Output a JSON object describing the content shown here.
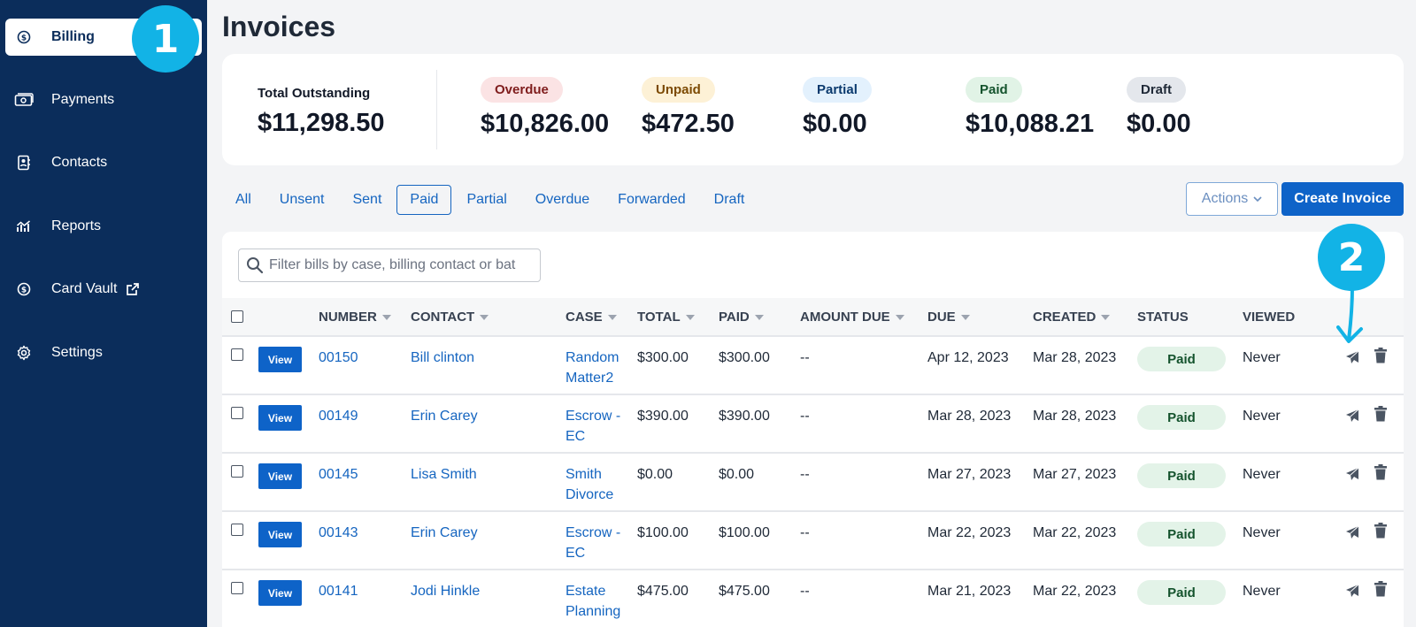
{
  "sidebar": {
    "items": [
      {
        "label": "Billing",
        "icon": "dollar-circle-icon",
        "active": true
      },
      {
        "label": "Payments",
        "icon": "banknote-icon"
      },
      {
        "label": "Contacts",
        "icon": "contact-book-icon"
      },
      {
        "label": "Reports",
        "icon": "chart-icon"
      },
      {
        "label": "Card Vault",
        "icon": "dollar-circle-icon",
        "extra_icon": "external-link-icon"
      },
      {
        "label": "Settings",
        "icon": "gear-icon"
      }
    ]
  },
  "callouts": [
    "1",
    "2"
  ],
  "page_title": "Invoices",
  "summary": {
    "total_label": "Total Outstanding",
    "total_value": "$11,298.50",
    "stats": [
      {
        "label": "Overdue",
        "value": "$10,826.00",
        "bg": "#fbe3e4",
        "fg": "#7f1d1d"
      },
      {
        "label": "Unpaid",
        "value": "$472.50",
        "bg": "#fdf1d6",
        "fg": "#7c4a03"
      },
      {
        "label": "Partial",
        "value": "$0.00",
        "bg": "#e3f1fd",
        "fg": "#0b3a6e"
      },
      {
        "label": "Paid",
        "value": "$10,088.21",
        "bg": "#e1f3e6",
        "fg": "#14532d"
      },
      {
        "label": "Draft",
        "value": "$0.00",
        "bg": "#e4e7ec",
        "fg": "#1f2937"
      }
    ]
  },
  "tabs": [
    "All",
    "Unsent",
    "Sent",
    "Paid",
    "Partial",
    "Overdue",
    "Forwarded",
    "Draft"
  ],
  "active_tab": "Paid",
  "toolbar": {
    "actions_label": "Actions",
    "create_label": "Create Invoice"
  },
  "search": {
    "placeholder": "Filter bills by case, billing contact or bat"
  },
  "table": {
    "columns": [
      "NUMBER",
      "CONTACT",
      "CASE",
      "TOTAL",
      "PAID",
      "AMOUNT DUE",
      "DUE",
      "CREATED",
      "STATUS",
      "VIEWED"
    ],
    "view_label": "View",
    "rows": [
      {
        "number": "00150",
        "contact": "Bill clinton",
        "case": "Random Matter2",
        "total": "$300.00",
        "paid": "$300.00",
        "amount_due": "--",
        "due": "Apr 12, 2023",
        "created": "Mar 28, 2023",
        "status": "Paid",
        "viewed": "Never"
      },
      {
        "number": "00149",
        "contact": "Erin Carey",
        "case": "Escrow - EC",
        "total": "$390.00",
        "paid": "$390.00",
        "amount_due": "--",
        "due": "Mar 28, 2023",
        "created": "Mar 28, 2023",
        "status": "Paid",
        "viewed": "Never"
      },
      {
        "number": "00145",
        "contact": "Lisa Smith",
        "case": "Smith Divorce",
        "total": "$0.00",
        "paid": "$0.00",
        "amount_due": "--",
        "due": "Mar 27, 2023",
        "created": "Mar 27, 2023",
        "status": "Paid",
        "viewed": "Never"
      },
      {
        "number": "00143",
        "contact": "Erin Carey",
        "case": "Escrow - EC",
        "total": "$100.00",
        "paid": "$100.00",
        "amount_due": "--",
        "due": "Mar 22, 2023",
        "created": "Mar 22, 2023",
        "status": "Paid",
        "viewed": "Never"
      },
      {
        "number": "00141",
        "contact": "Jodi Hinkle",
        "case": "Estate Planning",
        "total": "$475.00",
        "paid": "$475.00",
        "amount_due": "--",
        "due": "Mar 21, 2023",
        "created": "Mar 22, 2023",
        "status": "Paid",
        "viewed": "Never"
      }
    ]
  },
  "colors": {
    "sidebar": "#0b2d5b",
    "accent": "#1565c0",
    "primary_button": "#0e63c8",
    "callout": "#12b3e6"
  }
}
